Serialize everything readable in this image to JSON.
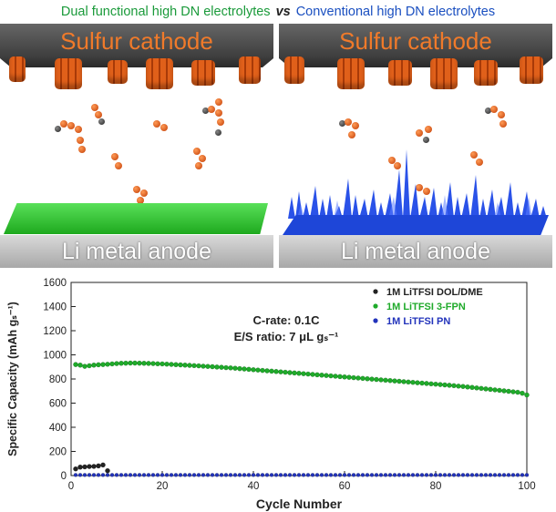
{
  "header": {
    "left_text": "Dual functional high DN electrolytes",
    "vs_text": "vs",
    "right_text": "Conventional high DN electrolytes"
  },
  "left_panel": {
    "cathode_label": "Sulfur cathode",
    "anode_label": "Li metal anode"
  },
  "right_panel": {
    "cathode_label": "Sulfur cathode",
    "anode_label": "Li metal anode"
  },
  "colors": {
    "green": "#1a9a3a",
    "blue": "#1a4fc0",
    "orange": "#f07a2a"
  },
  "chart_data": {
    "type": "scatter",
    "xlabel": "Cycle Number",
    "ylabel": "Specific Capacity (mAh gₛ⁻¹)",
    "xlim": [
      0,
      100
    ],
    "ylim": [
      0,
      1600
    ],
    "xticks": [
      0,
      20,
      40,
      60,
      80,
      100
    ],
    "yticks": [
      0,
      200,
      400,
      600,
      800,
      1000,
      1200,
      1400,
      1600
    ],
    "annotation_line1": "C-rate: 0.1C",
    "annotation_line2": "E/S ratio: 7 μL gₛ⁻¹",
    "legend_position": "top-right",
    "series": [
      {
        "name": "1M LiTFSI DOL/DME",
        "color": "#222222",
        "x": [
          1,
          2,
          3,
          4,
          5,
          6,
          7,
          8
        ],
        "values": [
          55,
          70,
          72,
          75,
          76,
          80,
          88,
          40
        ]
      },
      {
        "name": "1M LiTFSI 3-FPN",
        "color": "#1faa2a",
        "x": [
          1,
          2,
          3,
          4,
          5,
          6,
          7,
          8,
          9,
          10,
          11,
          12,
          13,
          14,
          15,
          16,
          17,
          18,
          19,
          20,
          21,
          22,
          23,
          24,
          25,
          26,
          27,
          28,
          29,
          30,
          31,
          32,
          33,
          34,
          35,
          36,
          37,
          38,
          39,
          40,
          41,
          42,
          43,
          44,
          45,
          46,
          47,
          48,
          49,
          50,
          51,
          52,
          53,
          54,
          55,
          56,
          57,
          58,
          59,
          60,
          61,
          62,
          63,
          64,
          65,
          66,
          67,
          68,
          69,
          70,
          71,
          72,
          73,
          74,
          75,
          76,
          77,
          78,
          79,
          80,
          81,
          82,
          83,
          84,
          85,
          86,
          87,
          88,
          89,
          90,
          91,
          92,
          93,
          94,
          95,
          96,
          97,
          98,
          99,
          100
        ],
        "values": [
          920,
          915,
          905,
          910,
          915,
          918,
          920,
          922,
          925,
          928,
          930,
          931,
          932,
          932,
          931,
          930,
          929,
          928,
          926,
          925,
          923,
          921,
          919,
          917,
          915,
          913,
          911,
          909,
          906,
          904,
          902,
          899,
          897,
          894,
          892,
          889,
          886,
          883,
          880,
          877,
          874,
          871,
          868,
          865,
          862,
          859,
          856,
          853,
          850,
          847,
          844,
          841,
          838,
          835,
          832,
          829,
          826,
          823,
          820,
          817,
          814,
          811,
          808,
          805,
          802,
          799,
          796,
          793,
          790,
          787,
          784,
          781,
          778,
          775,
          772,
          769,
          766,
          763,
          760,
          757,
          754,
          751,
          748,
          745,
          741,
          738,
          734,
          730,
          726,
          722,
          718,
          714,
          710,
          706,
          702,
          698,
          694,
          690,
          682,
          668
        ]
      },
      {
        "name": "1M LiTFSI PN",
        "color": "#2233bb",
        "x": [
          1,
          2,
          3,
          4,
          5,
          6,
          7,
          8,
          9,
          10,
          11,
          12,
          13,
          14,
          15,
          16,
          17,
          18,
          19,
          20,
          21,
          22,
          23,
          24,
          25,
          26,
          27,
          28,
          29,
          30,
          31,
          32,
          33,
          34,
          35,
          36,
          37,
          38,
          39,
          40,
          41,
          42,
          43,
          44,
          45,
          46,
          47,
          48,
          49,
          50,
          51,
          52,
          53,
          54,
          55,
          56,
          57,
          58,
          59,
          60,
          61,
          62,
          63,
          64,
          65,
          66,
          67,
          68,
          69,
          70,
          71,
          72,
          73,
          74,
          75,
          76,
          77,
          78,
          79,
          80,
          81,
          82,
          83,
          84,
          85,
          86,
          87,
          88,
          89,
          90,
          91,
          92,
          93,
          94,
          95,
          96,
          97,
          98,
          99,
          100
        ],
        "values": [
          5,
          5,
          5,
          5,
          5,
          5,
          5,
          5,
          5,
          5,
          5,
          5,
          5,
          5,
          5,
          5,
          5,
          5,
          5,
          5,
          5,
          5,
          5,
          5,
          5,
          5,
          5,
          5,
          5,
          5,
          5,
          5,
          5,
          5,
          5,
          5,
          5,
          5,
          5,
          5,
          5,
          5,
          5,
          5,
          5,
          5,
          5,
          5,
          5,
          5,
          5,
          5,
          5,
          5,
          5,
          5,
          5,
          5,
          5,
          5,
          5,
          5,
          5,
          5,
          5,
          5,
          5,
          5,
          5,
          5,
          5,
          5,
          5,
          5,
          5,
          5,
          5,
          5,
          5,
          5,
          5,
          5,
          5,
          5,
          5,
          5,
          5,
          5,
          5,
          5,
          5,
          5,
          5,
          5,
          5,
          5,
          5,
          5,
          5,
          5
        ]
      }
    ]
  }
}
